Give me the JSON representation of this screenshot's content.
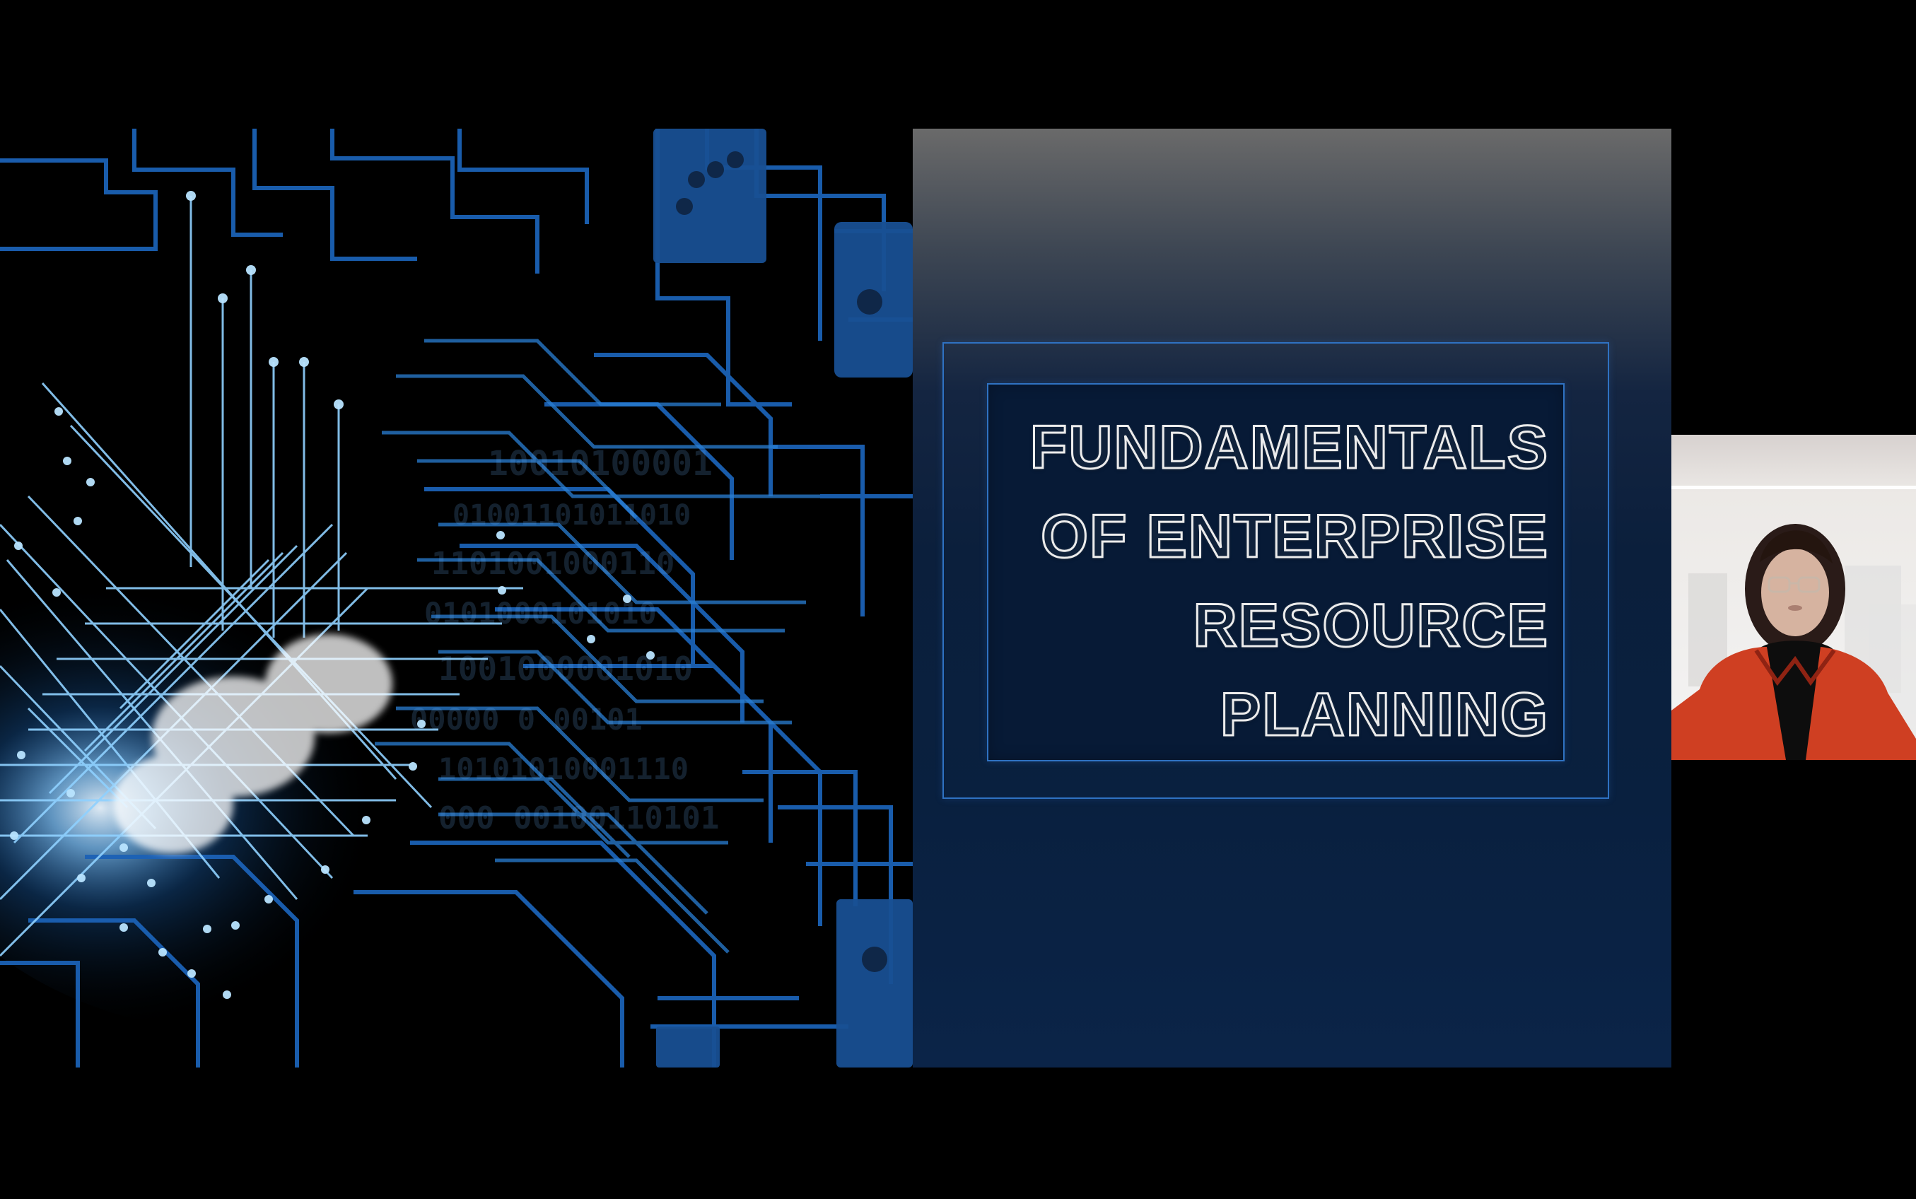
{
  "slide": {
    "title_lines": [
      "FUNDAMENTALS",
      "OF ENTERPRISE",
      "RESOURCE",
      "PLANNING"
    ]
  },
  "colors": {
    "background": "#000000",
    "title_panel": "#0b1f3c",
    "frame_border": "#2f72c2",
    "title_outline": "#ececec",
    "circuit_glow": "#4ca8ff",
    "presenter_jacket": "#d63f21"
  },
  "icons": {
    "background_art": "circuit-board-art",
    "video_feed": "presenter-video"
  }
}
